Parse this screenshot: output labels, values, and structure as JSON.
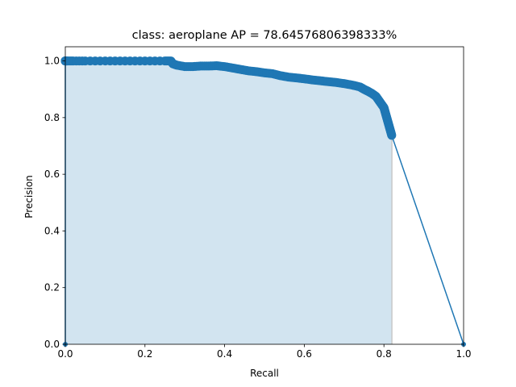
{
  "chart_data": {
    "type": "area",
    "title": "class: aeroplane AP = 78.64576806398333%",
    "xlabel": "Recall",
    "ylabel": "Precision",
    "xlim": [
      0.0,
      1.0
    ],
    "ylim": [
      0.0,
      1.05
    ],
    "xticks": [
      "0.0",
      "0.2",
      "0.4",
      "0.6",
      "0.8",
      "1.0"
    ],
    "yticks": [
      "0.0",
      "0.2",
      "0.4",
      "0.6",
      "0.8",
      "1.0"
    ],
    "grid": false,
    "line_color": "#1f77b4",
    "fill_color": "#1f77b4",
    "fill_opacity": 0.2,
    "series": [
      {
        "x": [
          0.0,
          0.0,
          0.0,
          0.005,
          0.02,
          0.05,
          0.1,
          0.15,
          0.2,
          0.25,
          0.265,
          0.27,
          0.28,
          0.3,
          0.32,
          0.34,
          0.36,
          0.38,
          0.4,
          0.42,
          0.44,
          0.46,
          0.48,
          0.5,
          0.52,
          0.54,
          0.56,
          0.58,
          0.6,
          0.62,
          0.64,
          0.66,
          0.68,
          0.7,
          0.72,
          0.74,
          0.75,
          0.76,
          0.77,
          0.78,
          0.785,
          0.79,
          0.795,
          0.8,
          0.802,
          0.804,
          0.806,
          0.808,
          0.81,
          0.812,
          0.814,
          0.816,
          0.818,
          0.82,
          1.0
        ],
        "y": [
          0.0,
          1.0,
          1.0,
          1.0,
          1.0,
          1.0,
          1.0,
          1.0,
          1.0,
          1.0,
          1.0,
          0.99,
          0.985,
          0.98,
          0.98,
          0.982,
          0.982,
          0.983,
          0.98,
          0.975,
          0.97,
          0.965,
          0.962,
          0.958,
          0.955,
          0.948,
          0.943,
          0.94,
          0.937,
          0.933,
          0.93,
          0.927,
          0.924,
          0.92,
          0.915,
          0.908,
          0.9,
          0.893,
          0.885,
          0.875,
          0.865,
          0.855,
          0.845,
          0.835,
          0.825,
          0.815,
          0.805,
          0.795,
          0.785,
          0.775,
          0.765,
          0.755,
          0.745,
          0.735,
          0.0
        ]
      }
    ]
  }
}
